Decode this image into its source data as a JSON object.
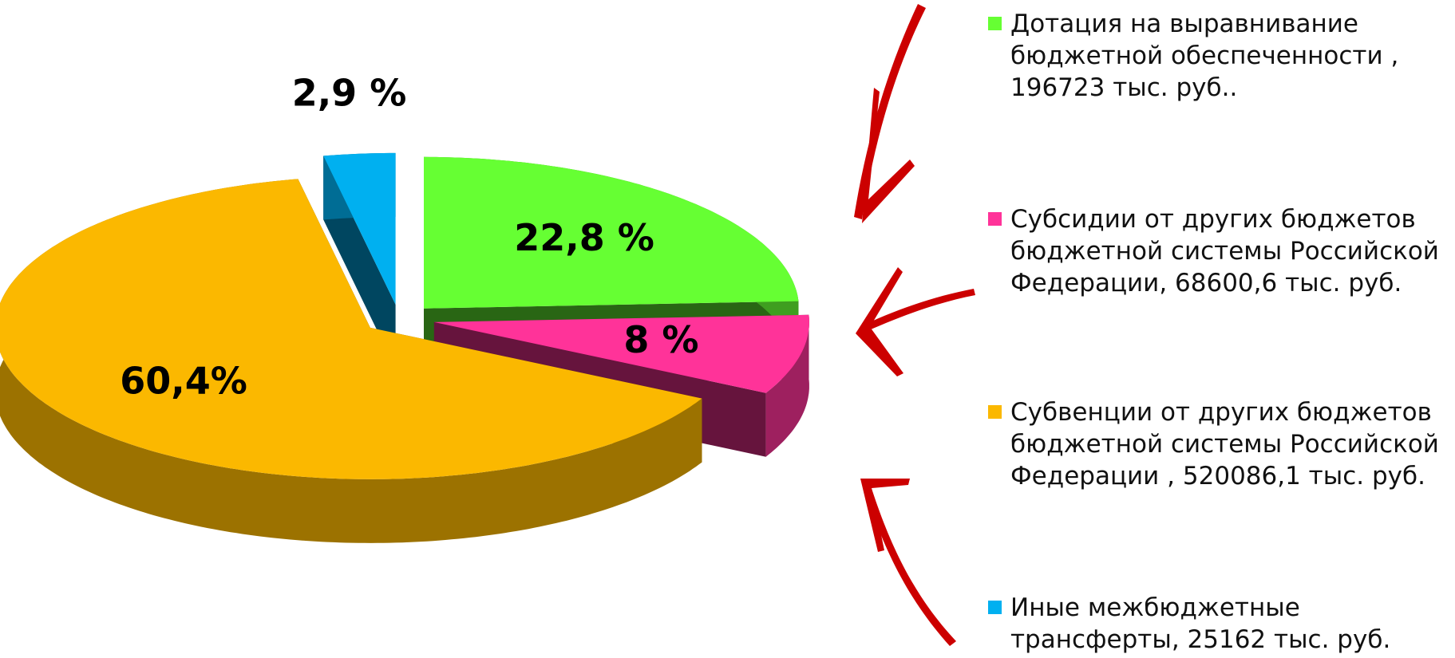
{
  "chart_data": {
    "type": "pie",
    "categories": [
      "Дотация на выравнивание бюджетной обеспеченности , 196723 тыс. руб..",
      "Субсидии от других бюджетов бюджетной системы Российской Федерации, 68600,6 тыс. руб.",
      "Субвенции от других бюджетов бюджетной системы Российской Федерации , 520086,1 тыс. руб.",
      "Иные межбюджетные трансферты, 25162 тыс. руб."
    ],
    "values": [
      22.8,
      8,
      60.4,
      2.9
    ],
    "value_labels": [
      "22,8 %",
      "8 %",
      "60,4%",
      "2,9 %"
    ],
    "colors": [
      "#66ff33",
      "#ff3399",
      "#fbb800",
      "#00b0f0"
    ],
    "legend": "right"
  }
}
